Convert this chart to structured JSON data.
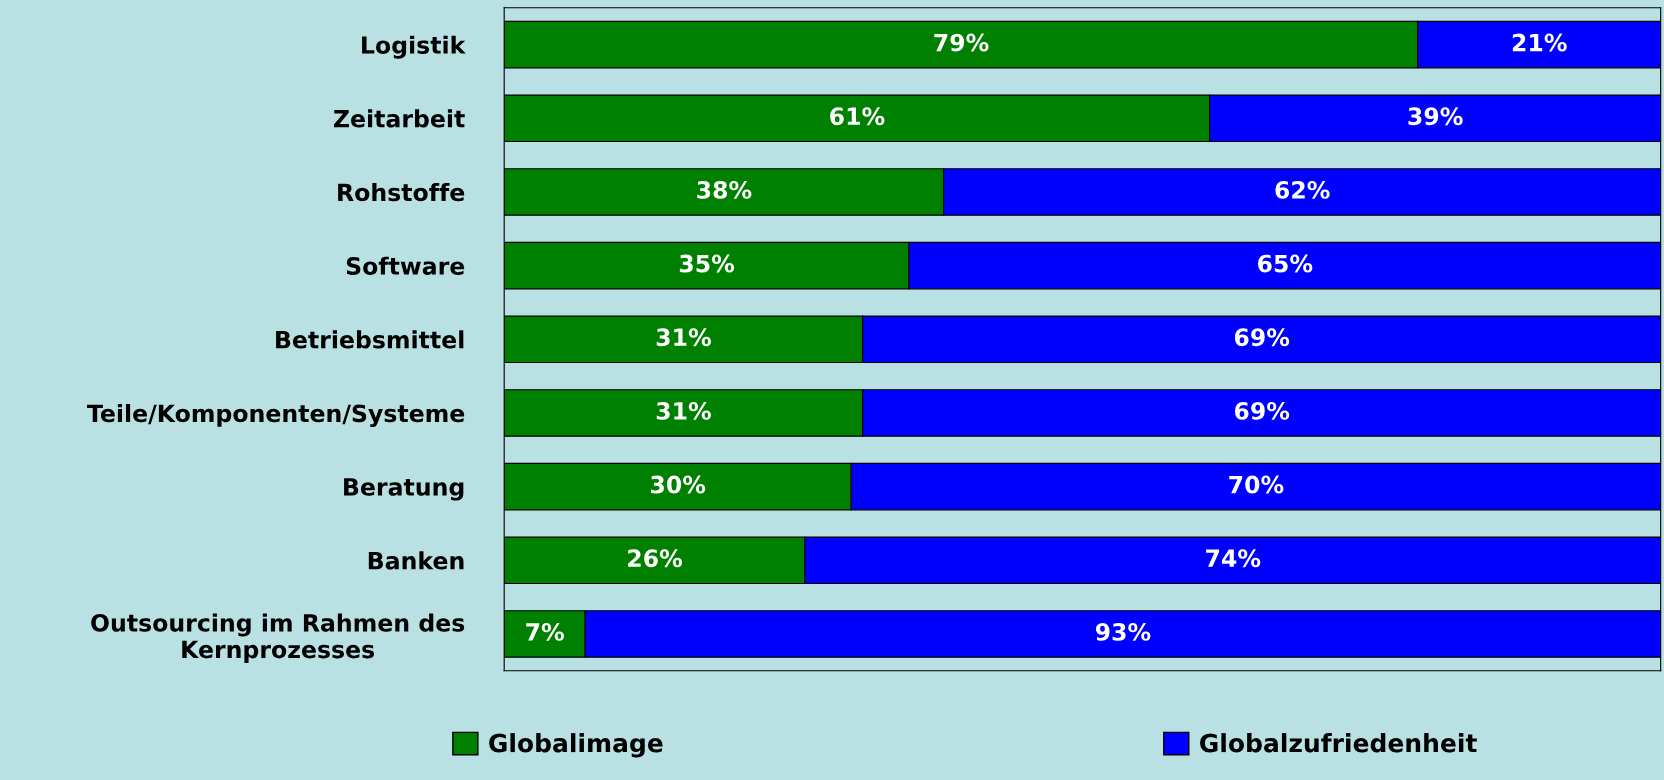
{
  "chart_data": {
    "type": "bar",
    "orientation": "horizontal",
    "stacked": true,
    "tick_labels": "y",
    "grid": false,
    "legend": "bottom",
    "categories": [
      "Logistik",
      "Zeitarbeit",
      "Rohstoffe",
      "Software",
      "Betriebsmittel",
      "Teile/Komponenten/Systeme",
      "Beratung",
      "Banken",
      "Outsourcing im Rahmen des\nKernprozesses"
    ],
    "series": [
      {
        "name": "Globalimage",
        "color": "#008000",
        "values": [
          79,
          61,
          38,
          35,
          31,
          31,
          30,
          26,
          7
        ],
        "value_labels": [
          "79%",
          "61%",
          "38%",
          "35%",
          "31%",
          "31%",
          "30%",
          "26%",
          "7%"
        ]
      },
      {
        "name": "Globalzufriedenheit",
        "color": "#0000ff",
        "values": [
          21,
          39,
          62,
          65,
          69,
          69,
          70,
          74,
          93
        ],
        "value_labels": [
          "21%",
          "39%",
          "62%",
          "65%",
          "69%",
          "69%",
          "70%",
          "74%",
          "93%"
        ]
      }
    ]
  }
}
